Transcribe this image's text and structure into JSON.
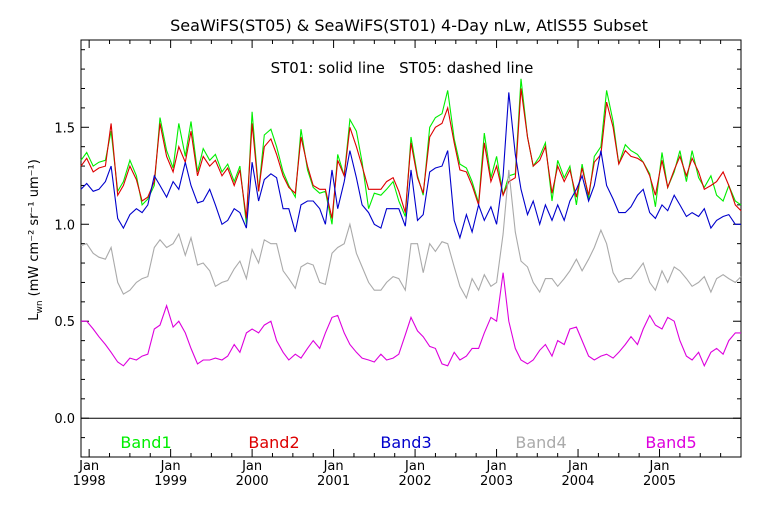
{
  "chart_data": {
    "type": "line",
    "title": "SeaWiFS(ST05) & SeaWiFS(ST01) 4-Day nLw, AtlS55 Subset",
    "annotation": "ST01: solid line   ST05: dashed line",
    "ylabel": "L_wn (mW cm^-2 sr^-1 um^-1)",
    "ylabel_main": "L",
    "ylabel_sub": "wn",
    "ylabel_units": " (mW cm⁻² sr⁻¹ um⁻¹)",
    "xlabel": "",
    "xlim": [
      1997.9,
      2006.0
    ],
    "ylim": [
      -0.2,
      1.95
    ],
    "grid": false,
    "zero_line": 0.0,
    "legend_position": "bottom",
    "y_ticks": [
      {
        "value": 0.0,
        "label": "0.0"
      },
      {
        "value": 0.5,
        "label": "0.5"
      },
      {
        "value": 1.0,
        "label": "1.0"
      },
      {
        "value": 1.5,
        "label": "1.5"
      }
    ],
    "x_ticks": [
      {
        "value": 1998,
        "month": "Jan",
        "year": "1998"
      },
      {
        "value": 1999,
        "month": "Jan",
        "year": "1999"
      },
      {
        "value": 2000,
        "month": "Jan",
        "year": "2000"
      },
      {
        "value": 2001,
        "month": "Jan",
        "year": "2001"
      },
      {
        "value": 2002,
        "month": "Jan",
        "year": "2002"
      },
      {
        "value": 2003,
        "month": "Jan",
        "year": "2003"
      },
      {
        "value": 2004,
        "month": "Jan",
        "year": "2004"
      },
      {
        "value": 2005,
        "month": "Jan",
        "year": "2005"
      }
    ],
    "x": [
      1997.9,
      1997.97,
      1998.05,
      1998.12,
      1998.2,
      1998.27,
      1998.35,
      1998.42,
      1998.5,
      1998.58,
      1998.65,
      1998.72,
      1998.8,
      1998.87,
      1998.95,
      1999.03,
      1999.1,
      1999.18,
      1999.25,
      1999.33,
      1999.4,
      1999.48,
      1999.55,
      1999.63,
      1999.7,
      1999.78,
      1999.85,
      1999.93,
      2000.0,
      2000.08,
      2000.15,
      2000.23,
      2000.3,
      2000.38,
      2000.45,
      2000.53,
      2000.6,
      2000.68,
      2000.75,
      2000.83,
      2000.9,
      2000.98,
      2001.05,
      2001.13,
      2001.2,
      2001.28,
      2001.35,
      2001.43,
      2001.5,
      2001.58,
      2001.65,
      2001.73,
      2001.8,
      2001.88,
      2001.95,
      2002.03,
      2002.1,
      2002.18,
      2002.25,
      2002.33,
      2002.4,
      2002.48,
      2002.55,
      2002.63,
      2002.7,
      2002.78,
      2002.85,
      2002.93,
      2003.0,
      2003.08,
      2003.15,
      2003.23,
      2003.3,
      2003.38,
      2003.45,
      2003.53,
      2003.6,
      2003.68,
      2003.75,
      2003.83,
      2003.9,
      2003.98,
      2004.05,
      2004.13,
      2004.2,
      2004.28,
      2004.35,
      2004.43,
      2004.5,
      2004.58,
      2004.65,
      2004.73,
      2004.8,
      2004.88,
      2004.95,
      2005.03,
      2005.1,
      2005.18,
      2005.25,
      2005.33,
      2005.4,
      2005.48,
      2005.55,
      2005.63,
      2005.7,
      2005.78,
      2005.85,
      2005.93,
      2006.0
    ],
    "series": [
      {
        "name": "Band1",
        "color": "#00ee00",
        "values": [
          1.33,
          1.37,
          1.3,
          1.32,
          1.33,
          1.48,
          1.17,
          1.22,
          1.33,
          1.25,
          1.1,
          1.13,
          1.2,
          1.55,
          1.38,
          1.29,
          1.52,
          1.35,
          1.53,
          1.27,
          1.39,
          1.33,
          1.36,
          1.27,
          1.31,
          1.22,
          1.3,
          1.0,
          1.58,
          1.17,
          1.46,
          1.49,
          1.4,
          1.27,
          1.2,
          1.14,
          1.49,
          1.28,
          1.19,
          1.16,
          1.17,
          1.0,
          1.36,
          1.25,
          1.54,
          1.48,
          1.32,
          1.08,
          1.16,
          1.15,
          1.18,
          1.22,
          1.12,
          1.04,
          1.45,
          1.25,
          1.15,
          1.5,
          1.55,
          1.57,
          1.69,
          1.44,
          1.31,
          1.29,
          1.22,
          1.11,
          1.47,
          1.24,
          1.35,
          1.15,
          1.25,
          1.26,
          1.75,
          1.45,
          1.3,
          1.35,
          1.42,
          1.12,
          1.33,
          1.24,
          1.3,
          1.1,
          1.31,
          1.13,
          1.35,
          1.4,
          1.69,
          1.53,
          1.31,
          1.41,
          1.38,
          1.36,
          1.32,
          1.26,
          1.09,
          1.37,
          1.19,
          1.27,
          1.38,
          1.22,
          1.38,
          1.24,
          1.19,
          1.25,
          1.15,
          1.12,
          1.2,
          1.12,
          1.1
        ]
      },
      {
        "name": "Band2",
        "color": "#dd0000",
        "values": [
          1.3,
          1.34,
          1.27,
          1.29,
          1.3,
          1.52,
          1.15,
          1.2,
          1.3,
          1.23,
          1.12,
          1.14,
          1.22,
          1.52,
          1.35,
          1.27,
          1.4,
          1.32,
          1.48,
          1.25,
          1.35,
          1.3,
          1.33,
          1.25,
          1.29,
          1.2,
          1.28,
          1.03,
          1.52,
          1.17,
          1.4,
          1.44,
          1.36,
          1.25,
          1.19,
          1.16,
          1.45,
          1.3,
          1.2,
          1.18,
          1.18,
          1.03,
          1.33,
          1.25,
          1.5,
          1.4,
          1.3,
          1.18,
          1.18,
          1.18,
          1.22,
          1.24,
          1.17,
          1.06,
          1.42,
          1.24,
          1.16,
          1.45,
          1.5,
          1.52,
          1.6,
          1.42,
          1.28,
          1.27,
          1.2,
          1.1,
          1.42,
          1.22,
          1.3,
          1.15,
          1.22,
          1.24,
          1.7,
          1.45,
          1.3,
          1.33,
          1.4,
          1.16,
          1.3,
          1.22,
          1.28,
          1.14,
          1.29,
          1.15,
          1.32,
          1.36,
          1.63,
          1.5,
          1.31,
          1.38,
          1.35,
          1.34,
          1.32,
          1.25,
          1.15,
          1.33,
          1.19,
          1.28,
          1.35,
          1.25,
          1.34,
          1.27,
          1.18,
          1.2,
          1.22,
          1.27,
          1.2,
          1.1,
          1.07
        ]
      },
      {
        "name": "Band3",
        "color": "#0000cc",
        "values": [
          1.18,
          1.21,
          1.17,
          1.18,
          1.22,
          1.3,
          1.03,
          0.98,
          1.05,
          1.08,
          1.06,
          1.1,
          1.25,
          1.2,
          1.14,
          1.22,
          1.18,
          1.32,
          1.2,
          1.11,
          1.12,
          1.18,
          1.1,
          1.0,
          1.02,
          1.08,
          1.06,
          0.98,
          1.32,
          1.12,
          1.23,
          1.26,
          1.24,
          1.08,
          1.08,
          0.96,
          1.1,
          1.12,
          1.12,
          1.08,
          1.0,
          1.28,
          1.08,
          1.22,
          1.38,
          1.24,
          1.1,
          1.06,
          1.0,
          0.98,
          1.08,
          1.08,
          1.08,
          0.99,
          1.28,
          1.02,
          1.05,
          1.27,
          1.29,
          1.3,
          1.38,
          1.02,
          0.93,
          1.05,
          0.96,
          1.1,
          1.02,
          1.09,
          1.0,
          1.25,
          1.68,
          1.36,
          1.18,
          1.05,
          1.12,
          1.0,
          1.1,
          1.02,
          1.1,
          1.02,
          1.12,
          1.18,
          1.25,
          1.12,
          1.2,
          1.38,
          1.2,
          1.13,
          1.06,
          1.06,
          1.09,
          1.15,
          1.18,
          1.06,
          1.03,
          1.1,
          1.07,
          1.15,
          1.1,
          1.04,
          1.06,
          1.04,
          1.08,
          0.98,
          1.02,
          1.04,
          1.05,
          1.0,
          1.0
        ]
      },
      {
        "name": "Band4",
        "color": "#aaaaaa",
        "values": [
          0.89,
          0.9,
          0.85,
          0.83,
          0.82,
          0.88,
          0.7,
          0.64,
          0.66,
          0.7,
          0.72,
          0.73,
          0.88,
          0.92,
          0.88,
          0.9,
          0.95,
          0.84,
          0.93,
          0.79,
          0.8,
          0.76,
          0.68,
          0.7,
          0.71,
          0.77,
          0.81,
          0.72,
          0.87,
          0.8,
          0.92,
          0.9,
          0.9,
          0.76,
          0.72,
          0.67,
          0.78,
          0.8,
          0.79,
          0.7,
          0.69,
          0.85,
          0.88,
          0.9,
          1.0,
          0.85,
          0.78,
          0.7,
          0.66,
          0.66,
          0.7,
          0.73,
          0.72,
          0.66,
          0.9,
          0.9,
          0.75,
          0.9,
          0.86,
          0.91,
          0.9,
          0.78,
          0.68,
          0.62,
          0.72,
          0.66,
          0.74,
          0.68,
          0.7,
          0.95,
          1.28,
          0.96,
          0.81,
          0.78,
          0.7,
          0.65,
          0.72,
          0.72,
          0.68,
          0.72,
          0.76,
          0.82,
          0.76,
          0.82,
          0.88,
          0.97,
          0.9,
          0.75,
          0.7,
          0.72,
          0.72,
          0.76,
          0.8,
          0.7,
          0.66,
          0.76,
          0.7,
          0.78,
          0.76,
          0.72,
          0.68,
          0.7,
          0.73,
          0.65,
          0.72,
          0.74,
          0.72,
          0.7,
          0.73
        ]
      },
      {
        "name": "Band5",
        "color": "#dd00dd",
        "values": [
          0.5,
          0.5,
          0.46,
          0.42,
          0.38,
          0.34,
          0.29,
          0.27,
          0.31,
          0.3,
          0.32,
          0.33,
          0.46,
          0.48,
          0.58,
          0.47,
          0.5,
          0.44,
          0.36,
          0.28,
          0.3,
          0.3,
          0.31,
          0.3,
          0.32,
          0.38,
          0.34,
          0.44,
          0.46,
          0.44,
          0.48,
          0.5,
          0.4,
          0.34,
          0.3,
          0.33,
          0.31,
          0.36,
          0.4,
          0.36,
          0.44,
          0.52,
          0.53,
          0.44,
          0.38,
          0.34,
          0.31,
          0.3,
          0.29,
          0.33,
          0.3,
          0.31,
          0.33,
          0.43,
          0.52,
          0.45,
          0.42,
          0.37,
          0.36,
          0.28,
          0.27,
          0.34,
          0.3,
          0.32,
          0.36,
          0.36,
          0.44,
          0.52,
          0.5,
          0.75,
          0.5,
          0.36,
          0.3,
          0.28,
          0.3,
          0.35,
          0.38,
          0.32,
          0.4,
          0.38,
          0.46,
          0.47,
          0.4,
          0.32,
          0.3,
          0.32,
          0.33,
          0.31,
          0.34,
          0.38,
          0.42,
          0.38,
          0.46,
          0.53,
          0.48,
          0.46,
          0.52,
          0.5,
          0.4,
          0.32,
          0.3,
          0.34,
          0.27,
          0.34,
          0.36,
          0.33,
          0.4,
          0.44,
          0.44
        ]
      }
    ]
  }
}
